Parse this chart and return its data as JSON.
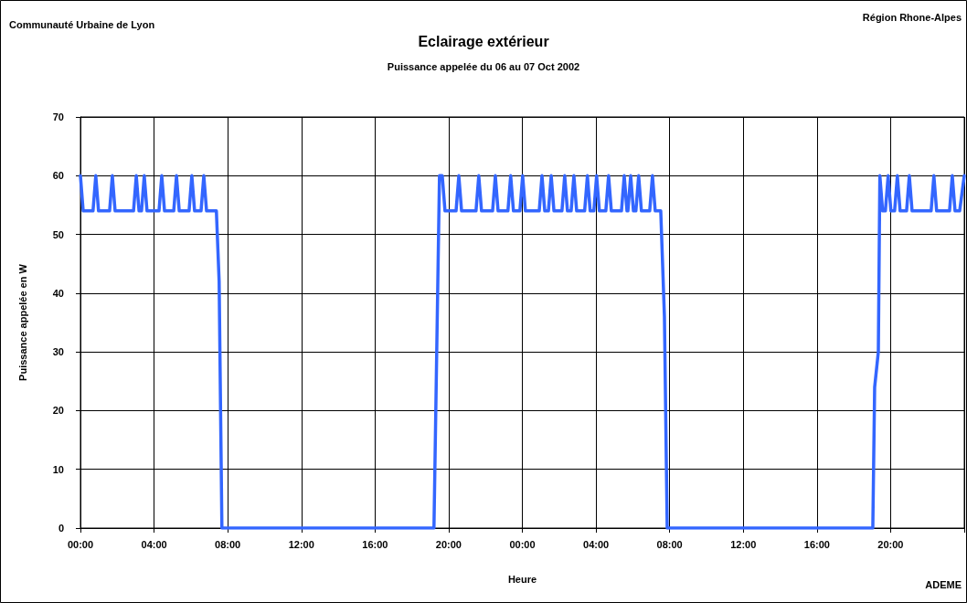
{
  "chart_data": {
    "type": "line",
    "title": "Eclairage extérieur",
    "subtitle": "Puissance appelée du 06 au 07 Oct 2002",
    "xlabel": "Heure",
    "ylabel": "Puissance appelée en W",
    "annotations": [
      "Communauté Urbaine de Lyon",
      "Région Rhone-Alpes",
      "ADEME"
    ],
    "x": [
      "2002-10-06T00:00",
      "2002-10-06T00:09",
      "2002-10-06T00:41",
      "2002-10-06T00:50",
      "2002-10-06T00:59",
      "2002-10-06T01:35",
      "2002-10-06T01:44",
      "2002-10-06T01:53",
      "2002-10-06T02:53",
      "2002-10-06T03:02",
      "2002-10-06T03:11",
      "2002-10-06T03:19",
      "2002-10-06T03:28",
      "2002-10-06T03:37",
      "2002-10-06T04:16",
      "2002-10-06T04:25",
      "2002-10-06T04:34",
      "2002-10-06T05:04",
      "2002-10-06T05:13",
      "2002-10-06T05:22",
      "2002-10-06T05:54",
      "2002-10-06T06:03",
      "2002-10-06T06:12",
      "2002-10-06T06:33",
      "2002-10-06T06:42",
      "2002-10-06T06:51",
      "2002-10-06T07:23",
      "2002-10-06T07:32",
      "2002-10-06T07:41",
      "2002-10-06T19:12",
      "2002-10-06T19:30",
      "2002-10-06T19:39",
      "2002-10-06T19:48",
      "2002-10-06T20:24",
      "2002-10-06T20:33",
      "2002-10-06T20:42",
      "2002-10-06T21:29",
      "2002-10-06T21:38",
      "2002-10-06T21:47",
      "2002-10-06T22:23",
      "2002-10-06T22:32",
      "2002-10-06T22:41",
      "2002-10-06T23:13",
      "2002-10-06T23:22",
      "2002-10-06T23:31",
      "2002-10-06T23:52",
      "2002-10-07T00:01",
      "2002-10-07T00:10",
      "2002-10-07T00:55",
      "2002-10-07T01:04",
      "2002-10-07T01:13",
      "2002-10-07T01:25",
      "2002-10-07T01:34",
      "2002-10-07T01:43",
      "2002-10-07T02:09",
      "2002-10-07T02:18",
      "2002-10-07T02:27",
      "2002-10-07T02:39",
      "2002-10-07T02:48",
      "2002-10-07T02:57",
      "2002-10-07T03:23",
      "2002-10-07T03:32",
      "2002-10-07T03:41",
      "2002-10-07T03:53",
      "2002-10-07T04:02",
      "2002-10-07T04:11",
      "2002-10-07T04:32",
      "2002-10-07T04:41",
      "2002-10-07T04:50",
      "2002-10-07T05:23",
      "2002-10-07T05:32",
      "2002-10-07T05:41",
      "2002-10-07T05:44",
      "2002-10-07T05:53",
      "2002-10-07T06:02",
      "2002-10-07T06:10",
      "2002-10-07T06:19",
      "2002-10-07T06:28",
      "2002-10-07T06:55",
      "2002-10-07T07:04",
      "2002-10-07T07:13",
      "2002-10-07T07:31",
      "2002-10-07T07:43",
      "2002-10-07T07:52",
      "2002-10-07T19:02",
      "2002-10-07T19:08",
      "2002-10-07T19:20",
      "2002-10-07T19:25",
      "2002-10-07T19:34",
      "2002-10-07T19:43",
      "2002-10-07T19:52",
      "2002-10-07T20:01",
      "2002-10-07T20:13",
      "2002-10-07T20:22",
      "2002-10-07T20:31",
      "2002-10-07T20:52",
      "2002-10-07T21:01",
      "2002-10-07T21:10",
      "2002-10-07T22:12",
      "2002-10-07T22:21",
      "2002-10-07T22:30",
      "2002-10-07T23:12",
      "2002-10-07T23:21",
      "2002-10-07T23:30",
      "2002-10-07T23:45",
      "2002-10-08T00:00"
    ],
    "series": [
      {
        "color": "#3366ff",
        "values": [
          60,
          54,
          54,
          60,
          54,
          54,
          60,
          54,
          54,
          60,
          54,
          54,
          60,
          54,
          54,
          60,
          54,
          54,
          60,
          54,
          54,
          60,
          54,
          54,
          60,
          54,
          54,
          42,
          0,
          0,
          60,
          60,
          54,
          54,
          60,
          54,
          54,
          60,
          54,
          54,
          60,
          54,
          54,
          60,
          54,
          54,
          60,
          54,
          54,
          60,
          54,
          54,
          60,
          54,
          54,
          60,
          54,
          54,
          60,
          54,
          54,
          60,
          54,
          54,
          60,
          54,
          54,
          60,
          54,
          54,
          60,
          54,
          54,
          60,
          54,
          54,
          60,
          54,
          54,
          60,
          54,
          54,
          36,
          0,
          0,
          24,
          30,
          60,
          54,
          54,
          60,
          54,
          54,
          60,
          54,
          54,
          60,
          54,
          54,
          60,
          54,
          54,
          60,
          54,
          54,
          60
        ]
      }
    ],
    "xlim": [
      "2002-10-06T00:00",
      "2002-10-08T00:00"
    ],
    "xticks": [
      {
        "value": "2002-10-06T00:00",
        "label": "00:00"
      },
      {
        "value": "2002-10-06T04:00",
        "label": "04:00"
      },
      {
        "value": "2002-10-06T08:00",
        "label": "08:00"
      },
      {
        "value": "2002-10-06T12:00",
        "label": "12:00"
      },
      {
        "value": "2002-10-06T16:00",
        "label": "16:00"
      },
      {
        "value": "2002-10-06T20:00",
        "label": "20:00"
      },
      {
        "value": "2002-10-07T00:00",
        "label": "00:00"
      },
      {
        "value": "2002-10-07T04:00",
        "label": "04:00"
      },
      {
        "value": "2002-10-07T08:00",
        "label": "08:00"
      },
      {
        "value": "2002-10-07T12:00",
        "label": "12:00"
      },
      {
        "value": "2002-10-07T16:00",
        "label": "16:00"
      },
      {
        "value": "2002-10-07T20:00",
        "label": "20:00"
      },
      {
        "value": "2002-10-08T00:00",
        "label": null
      }
    ],
    "ylim": [
      0,
      70
    ],
    "yticks": [
      0,
      10,
      20,
      30,
      40,
      50,
      60,
      70
    ],
    "grid": true,
    "marker": "none",
    "line_style": "solid"
  }
}
